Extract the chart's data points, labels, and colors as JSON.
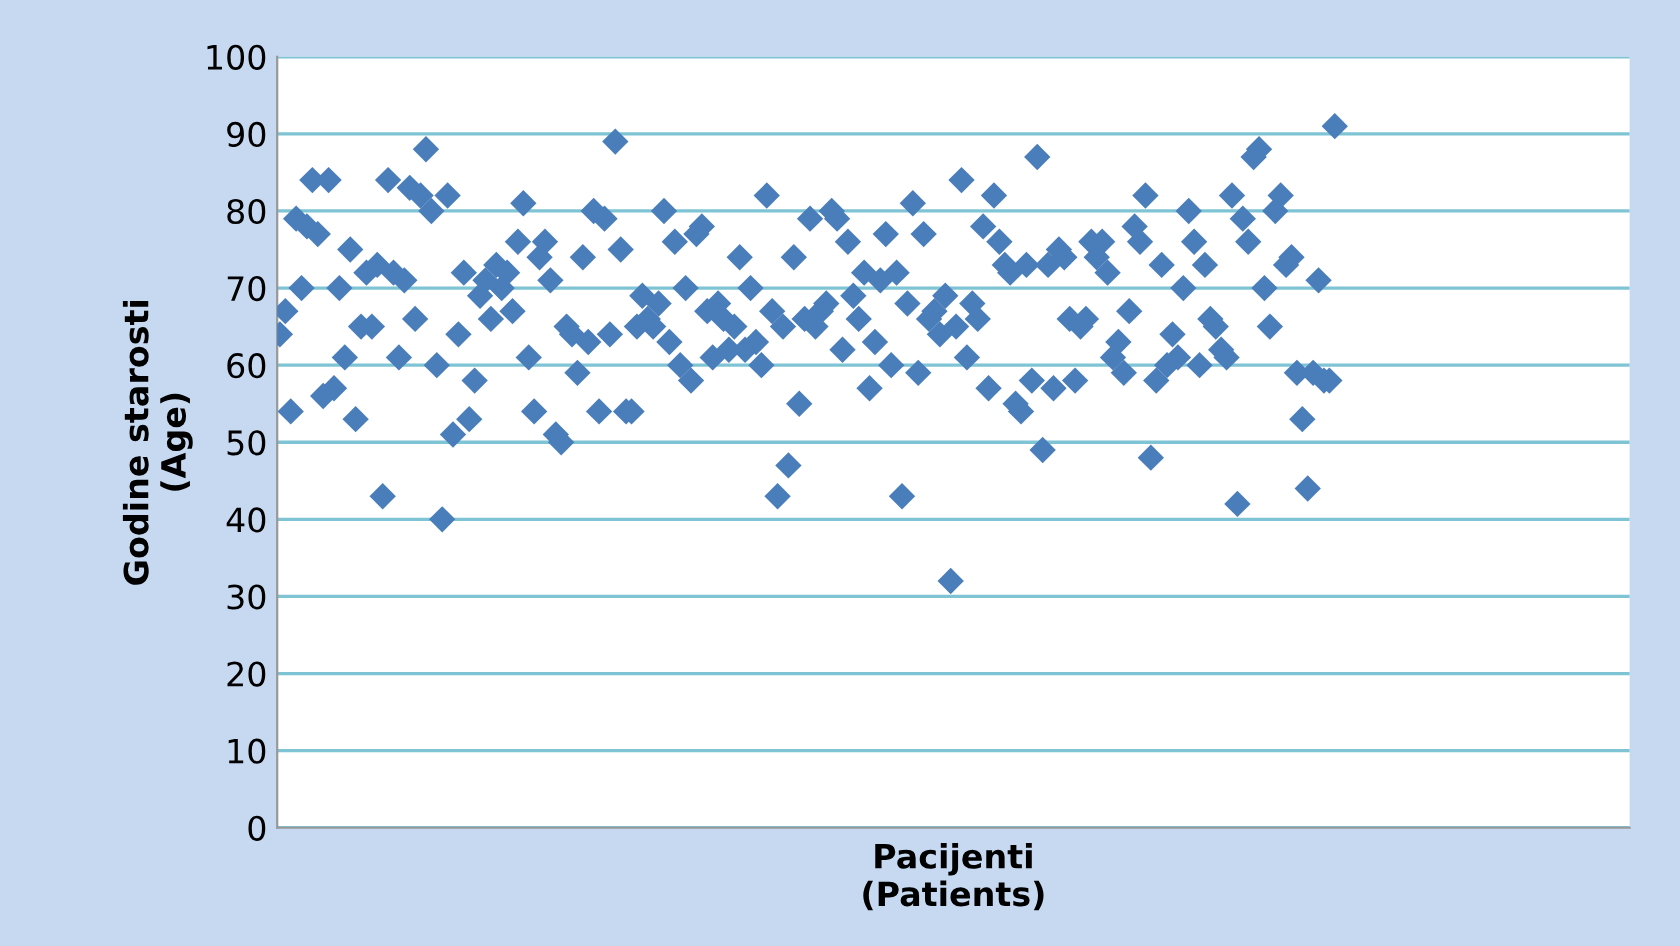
{
  "chart_data": {
    "type": "scatter",
    "xlabel": "Pacijenti\n(Patients)",
    "ylabel": "Godine starosti\n(Age)",
    "categories": [
      null,
      null,
      null,
      null,
      null,
      null,
      null,
      null,
      null,
      null,
      null,
      null,
      null,
      null,
      null,
      null,
      null,
      null,
      null,
      null,
      null,
      null,
      null,
      null,
      null,
      null,
      null,
      null,
      null,
      null,
      null,
      null,
      null,
      null,
      null,
      null,
      null,
      null,
      null,
      null,
      null,
      null,
      null,
      null,
      null,
      null,
      null,
      null,
      null,
      null,
      null,
      null,
      null,
      null,
      null,
      null,
      null,
      null,
      null,
      null,
      null,
      null,
      null,
      null,
      null,
      null,
      null,
      null,
      null,
      null,
      null,
      null,
      null,
      null,
      null,
      null,
      null,
      null,
      null,
      null,
      null,
      null,
      null,
      null,
      null,
      null,
      null,
      null,
      null,
      null,
      null,
      null,
      null,
      null,
      null,
      null,
      null,
      null,
      null,
      null,
      null,
      null,
      null,
      null,
      null,
      null,
      null,
      null,
      null,
      null,
      null,
      null,
      null,
      null,
      null,
      null,
      null,
      null,
      null,
      null,
      null,
      null,
      null,
      null,
      null,
      null,
      null,
      null,
      null,
      null,
      null,
      null,
      null,
      null,
      null,
      null,
      null,
      null,
      null,
      null,
      null,
      null,
      null,
      null,
      null,
      null,
      null,
      null,
      null,
      null,
      null,
      null,
      null,
      null,
      null,
      null,
      null,
      null,
      null,
      null,
      null,
      null,
      null,
      null,
      null,
      null,
      null,
      null,
      null,
      null,
      null,
      null,
      null,
      null,
      null,
      null,
      null,
      null,
      null,
      null,
      null,
      null,
      null,
      null,
      null,
      null,
      null,
      null,
      null,
      null,
      null,
      null,
      null,
      null,
      null,
      null,
      null,
      null,
      null,
      null,
      null,
      null,
      null,
      null,
      null,
      null,
      null,
      null,
      null,
      null,
      null,
      null,
      null,
      null,
      null,
      null,
      null,
      null,
      null,
      null,
      null,
      null,
      null,
      null,
      null,
      null,
      null,
      null,
      null,
      null,
      null,
      null,
      null,
      null,
      null,
      null,
      null,
      null,
      null,
      null,
      null,
      null,
      null,
      null,
      null,
      null,
      null,
      null,
      null,
      null
    ],
    "values": [
      64,
      67,
      54,
      79,
      70,
      78,
      84,
      77,
      56,
      84,
      57,
      70,
      61,
      75,
      53,
      65,
      72,
      65,
      73,
      43,
      84,
      72,
      61,
      71,
      83,
      66,
      82,
      88,
      80,
      60,
      40,
      82,
      51,
      64,
      72,
      53,
      58,
      69,
      71,
      66,
      73,
      70,
      72,
      67,
      76,
      81,
      61,
      54,
      74,
      76,
      71,
      51,
      50,
      65,
      64,
      59,
      74,
      63,
      80,
      54,
      79,
      64,
      89,
      75,
      54,
      54,
      65,
      69,
      66,
      65,
      68,
      80,
      63,
      76,
      60,
      70,
      58,
      77,
      78,
      67,
      61,
      68,
      66,
      62,
      65,
      74,
      62,
      70,
      63,
      60,
      82,
      67,
      43,
      65,
      47,
      74,
      55,
      66,
      79,
      65,
      67,
      68,
      80,
      79,
      62,
      76,
      69,
      66,
      72,
      57,
      63,
      71,
      77,
      60,
      72,
      43,
      68,
      81,
      59,
      77,
      66,
      67,
      64,
      69,
      32,
      65,
      84,
      61,
      68,
      66,
      78,
      57,
      82,
      76,
      73,
      72,
      55,
      54,
      73,
      58,
      87,
      49,
      73,
      57,
      75,
      74,
      66,
      58,
      65,
      66,
      76,
      74,
      76,
      72,
      61,
      63,
      59,
      67,
      78,
      76,
      82,
      48,
      58,
      73,
      60,
      64,
      61,
      70,
      80,
      76,
      60,
      73,
      66,
      65,
      62,
      61,
      82,
      42,
      79,
      76,
      87,
      88,
      70,
      65,
      80,
      82,
      73,
      74,
      59,
      53,
      44,
      59,
      71,
      58,
      58,
      91,
      null,
      null,
      null,
      null,
      null,
      null,
      null,
      null,
      null,
      null,
      null,
      null,
      null,
      null,
      null,
      null,
      null,
      null,
      null,
      null,
      null,
      null,
      null,
      null,
      null,
      null,
      null,
      null,
      null,
      null,
      null,
      null,
      null,
      null,
      null,
      null,
      null,
      null,
      null,
      null,
      null,
      null,
      null,
      null,
      null,
      null,
      null,
      null,
      null,
      null,
      null,
      null,
      null,
      null
    ],
    "color": "#4a7ebb",
    "marker": "diamond",
    "ylim": [
      0,
      100
    ],
    "yticks": [
      0,
      10,
      20,
      30,
      40,
      50,
      60,
      70,
      80,
      90,
      100
    ],
    "grid": "y"
  }
}
